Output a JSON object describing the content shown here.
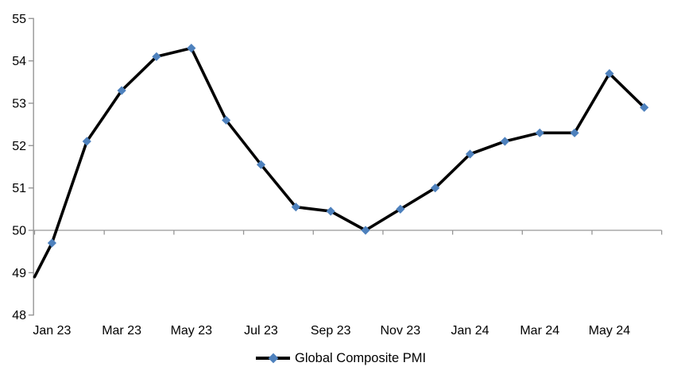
{
  "chart_data": {
    "type": "line",
    "title": "",
    "xlabel": "",
    "ylabel": "",
    "legend_label": "Global Composite PMI",
    "legend_position": "bottom-center",
    "categories": [
      "Jan 23",
      "Feb 23",
      "Mar 23",
      "Apr 23",
      "May 23",
      "Jun 23",
      "Jul 23",
      "Aug 23",
      "Sep 23",
      "Oct 23",
      "Nov 23",
      "Dec 23",
      "Jan 24",
      "Feb 24",
      "Mar 24",
      "Apr 24",
      "May 24",
      "Jun 24"
    ],
    "values": [
      49.7,
      52.1,
      53.3,
      54.1,
      54.3,
      52.6,
      51.55,
      50.55,
      50.45,
      50.0,
      50.5,
      51.0,
      51.8,
      52.1,
      52.3,
      52.3,
      53.7,
      52.9
    ],
    "line_enters_plot_left_at_value": 48.9,
    "x_tick_labels": [
      "Jan 23",
      "Mar 23",
      "May 23",
      "Jul 23",
      "Sep 23",
      "Nov 23",
      "Jan 24",
      "Mar 24",
      "May 24"
    ],
    "x_label_interval": 2,
    "x_tick_every_categories": 2,
    "y_tick_labels": [
      "48",
      "49",
      "50",
      "51",
      "52",
      "53",
      "54",
      "55"
    ],
    "ylim": [
      48,
      55
    ],
    "y_step": 1,
    "x_axis_crosses_at": 50,
    "grid": "none; only the category axis line at value 50 with ticks",
    "marker_shape": "diamond",
    "colors": {
      "series_line": "#000000",
      "marker": "#4E81BD",
      "axis": "#969696",
      "text": "#000000",
      "background": "#FFFFFF"
    }
  }
}
